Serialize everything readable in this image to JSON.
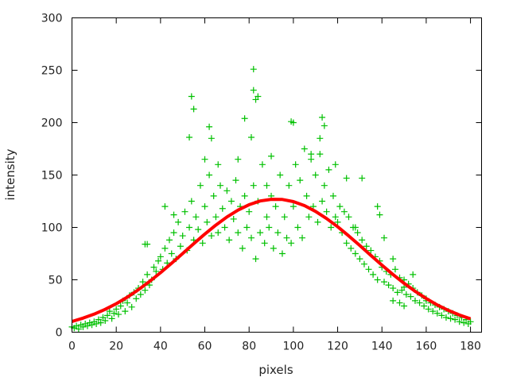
{
  "chart_data": {
    "type": "scatter",
    "title": "",
    "xlabel": "pixels",
    "ylabel": "intensity",
    "xlim": [
      0,
      185
    ],
    "ylim": [
      0,
      300
    ],
    "xticks": [
      "0",
      "20",
      "40",
      "60",
      "80",
      "100",
      "120",
      "140",
      "160",
      "180"
    ],
    "yticks": [
      "0",
      "50",
      "100",
      "150",
      "200",
      "250",
      "300"
    ],
    "grid": false,
    "legend": "none",
    "series": [
      {
        "kind": "scatter",
        "marker": "plus",
        "color": "#00c000",
        "points": [
          [
            0,
            5
          ],
          [
            1,
            4
          ],
          [
            2,
            6
          ],
          [
            3,
            3
          ],
          [
            4,
            7
          ],
          [
            5,
            5
          ],
          [
            6,
            8
          ],
          [
            7,
            6
          ],
          [
            8,
            9
          ],
          [
            9,
            7
          ],
          [
            10,
            10
          ],
          [
            11,
            8
          ],
          [
            12,
            12
          ],
          [
            13,
            9
          ],
          [
            14,
            14
          ],
          [
            15,
            11
          ],
          [
            16,
            16
          ],
          [
            17,
            20
          ],
          [
            18,
            13
          ],
          [
            19,
            18
          ],
          [
            20,
            22
          ],
          [
            21,
            17
          ],
          [
            22,
            25
          ],
          [
            23,
            30
          ],
          [
            24,
            20
          ],
          [
            25,
            28
          ],
          [
            26,
            35
          ],
          [
            27,
            24
          ],
          [
            28,
            38
          ],
          [
            29,
            32
          ],
          [
            30,
            42
          ],
          [
            31,
            36
          ],
          [
            32,
            48
          ],
          [
            33,
            40
          ],
          [
            34,
            55
          ],
          [
            35,
            45
          ],
          [
            36,
            50
          ],
          [
            37,
            62
          ],
          [
            38,
            58
          ],
          [
            39,
            68
          ],
          [
            40,
            72
          ],
          [
            41,
            60
          ],
          [
            42,
            80
          ],
          [
            43,
            66
          ],
          [
            44,
            88
          ],
          [
            45,
            75
          ],
          [
            46,
            95
          ],
          [
            47,
            70
          ],
          [
            48,
            105
          ],
          [
            49,
            82
          ],
          [
            50,
            92
          ],
          [
            51,
            115
          ],
          [
            52,
            78
          ],
          [
            53,
            100
          ],
          [
            54,
            125
          ],
          [
            55,
            88
          ],
          [
            56,
            110
          ],
          [
            57,
            98
          ],
          [
            58,
            140
          ],
          [
            59,
            85
          ],
          [
            60,
            120
          ],
          [
            61,
            105
          ],
          [
            62,
            150
          ],
          [
            63,
            92
          ],
          [
            64,
            130
          ],
          [
            65,
            110
          ],
          [
            66,
            95
          ],
          [
            67,
            140
          ],
          [
            68,
            118
          ],
          [
            69,
            100
          ],
          [
            70,
            135
          ],
          [
            71,
            88
          ],
          [
            72,
            125
          ],
          [
            73,
            108
          ],
          [
            74,
            145
          ],
          [
            75,
            95
          ],
          [
            76,
            120
          ],
          [
            77,
            80
          ],
          [
            78,
            130
          ],
          [
            79,
            100
          ],
          [
            80,
            115
          ],
          [
            81,
            90
          ],
          [
            82,
            140
          ],
          [
            83,
            70
          ],
          [
            84,
            125
          ],
          [
            85,
            95
          ],
          [
            86,
            160
          ],
          [
            87,
            85
          ],
          [
            88,
            110
          ],
          [
            89,
            100
          ],
          [
            90,
            130
          ],
          [
            91,
            80
          ],
          [
            92,
            120
          ],
          [
            93,
            95
          ],
          [
            94,
            150
          ],
          [
            95,
            75
          ],
          [
            96,
            110
          ],
          [
            97,
            90
          ],
          [
            98,
            140
          ],
          [
            99,
            85
          ],
          [
            100,
            120
          ],
          [
            101,
            160
          ],
          [
            102,
            100
          ],
          [
            103,
            145
          ],
          [
            104,
            90
          ],
          [
            105,
            175
          ],
          [
            106,
            130
          ],
          [
            107,
            110
          ],
          [
            108,
            165
          ],
          [
            109,
            120
          ],
          [
            110,
            150
          ],
          [
            111,
            105
          ],
          [
            112,
            170
          ],
          [
            113,
            125
          ],
          [
            114,
            140
          ],
          [
            115,
            115
          ],
          [
            116,
            155
          ],
          [
            117,
            100
          ],
          [
            118,
            130
          ],
          [
            119,
            110
          ],
          [
            120,
            105
          ],
          [
            121,
            120
          ],
          [
            122,
            95
          ],
          [
            123,
            115
          ],
          [
            124,
            85
          ],
          [
            125,
            110
          ],
          [
            126,
            80
          ],
          [
            127,
            100
          ],
          [
            128,
            75
          ],
          [
            129,
            95
          ],
          [
            130,
            70
          ],
          [
            131,
            88
          ],
          [
            132,
            65
          ],
          [
            133,
            82
          ],
          [
            134,
            60
          ],
          [
            135,
            78
          ],
          [
            136,
            55
          ],
          [
            137,
            72
          ],
          [
            138,
            50
          ],
          [
            139,
            68
          ],
          [
            140,
            62
          ],
          [
            141,
            48
          ],
          [
            142,
            58
          ],
          [
            143,
            45
          ],
          [
            144,
            55
          ],
          [
            145,
            42
          ],
          [
            146,
            60
          ],
          [
            147,
            38
          ],
          [
            148,
            52
          ],
          [
            149,
            40
          ],
          [
            150,
            50
          ],
          [
            151,
            36
          ],
          [
            152,
            46
          ],
          [
            153,
            34
          ],
          [
            154,
            42
          ],
          [
            155,
            30
          ],
          [
            156,
            38
          ],
          [
            157,
            28
          ],
          [
            158,
            35
          ],
          [
            159,
            25
          ],
          [
            160,
            32
          ],
          [
            161,
            22
          ],
          [
            162,
            28
          ],
          [
            163,
            20
          ],
          [
            164,
            26
          ],
          [
            165,
            18
          ],
          [
            166,
            24
          ],
          [
            167,
            16
          ],
          [
            168,
            22
          ],
          [
            169,
            14
          ],
          [
            170,
            20
          ],
          [
            171,
            13
          ],
          [
            172,
            18
          ],
          [
            173,
            12
          ],
          [
            174,
            16
          ],
          [
            175,
            10
          ],
          [
            176,
            14
          ],
          [
            177,
            9
          ],
          [
            178,
            12
          ],
          [
            179,
            8
          ],
          [
            180,
            10
          ],
          [
            54,
            225
          ],
          [
            55,
            213
          ],
          [
            53,
            186
          ],
          [
            62,
            196
          ],
          [
            63,
            185
          ],
          [
            78,
            204
          ],
          [
            82,
            251
          ],
          [
            82,
            231
          ],
          [
            83,
            222
          ],
          [
            84,
            225
          ],
          [
            81,
            186
          ],
          [
            99,
            201
          ],
          [
            100,
            200
          ],
          [
            113,
            205
          ],
          [
            114,
            197
          ],
          [
            112,
            185
          ],
          [
            34,
            84
          ],
          [
            33,
            84
          ],
          [
            150,
            43
          ],
          [
            154,
            55
          ],
          [
            145,
            30
          ],
          [
            148,
            28
          ],
          [
            160,
            30
          ],
          [
            145,
            70
          ],
          [
            119,
            160
          ],
          [
            124,
            147
          ],
          [
            131,
            147
          ],
          [
            138,
            120
          ],
          [
            139,
            112
          ],
          [
            150,
            25
          ],
          [
            141,
            90
          ],
          [
            128,
            100
          ],
          [
            66,
            160
          ],
          [
            60,
            165
          ],
          [
            75,
            165
          ],
          [
            108,
            170
          ],
          [
            90,
            168
          ],
          [
            88,
            140
          ],
          [
            46,
            112
          ],
          [
            42,
            120
          ]
        ]
      },
      {
        "kind": "line",
        "color": "#ff0000",
        "x": [
          0,
          5,
          10,
          15,
          20,
          25,
          30,
          35,
          40,
          45,
          50,
          55,
          60,
          65,
          70,
          75,
          80,
          85,
          90,
          95,
          100,
          105,
          110,
          115,
          120,
          125,
          130,
          135,
          140,
          145,
          150,
          155,
          160,
          165,
          170,
          175,
          180
        ],
        "y": [
          10.2,
          13.4,
          17.2,
          21.8,
          27.2,
          33.4,
          40.5,
          48.3,
          56.8,
          65.8,
          75.1,
          84.5,
          93.6,
          102.2,
          110.0,
          116.5,
          121.7,
          125.2,
          126.8,
          126.7,
          124.6,
          120.8,
          115.3,
          108.5,
          100.6,
          91.9,
          82.7,
          73.3,
          64.0,
          55.1,
          46.7,
          39.0,
          32.1,
          26.0,
          20.8,
          16.4,
          12.7
        ]
      }
    ]
  }
}
